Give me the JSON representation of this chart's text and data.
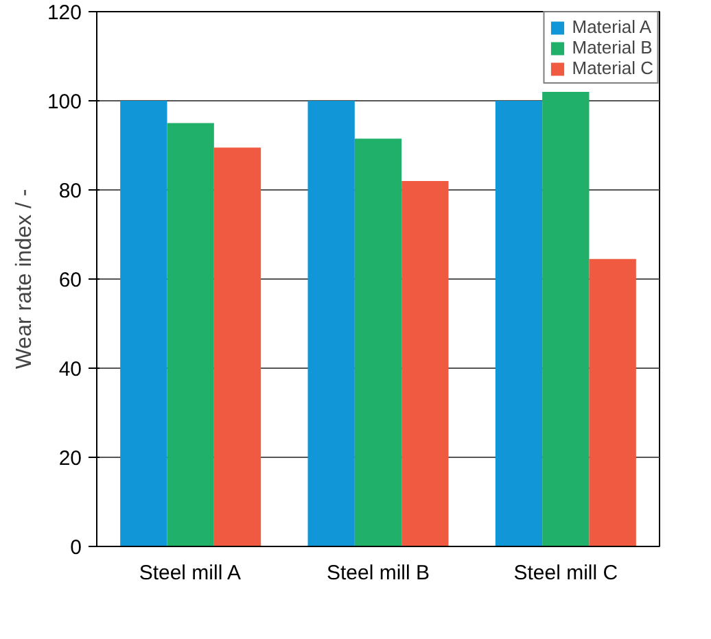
{
  "chart_data": {
    "type": "bar",
    "ylabel": "Wear rate index / -",
    "categories": [
      "Steel mill A",
      "Steel mill B",
      "Steel mill C"
    ],
    "series": [
      {
        "name": "Material A",
        "color": "#1196d8",
        "values": [
          100,
          100,
          100
        ]
      },
      {
        "name": "Material B",
        "color": "#20b06a",
        "values": [
          95,
          91.5,
          102
        ]
      },
      {
        "name": "Material C",
        "color": "#f05a40",
        "values": [
          89.5,
          82,
          64.5
        ]
      }
    ],
    "ylim": [
      0,
      120
    ],
    "yticks": [
      0,
      20,
      40,
      60,
      80,
      100,
      120
    ],
    "grid": "y",
    "legend": "top right"
  }
}
